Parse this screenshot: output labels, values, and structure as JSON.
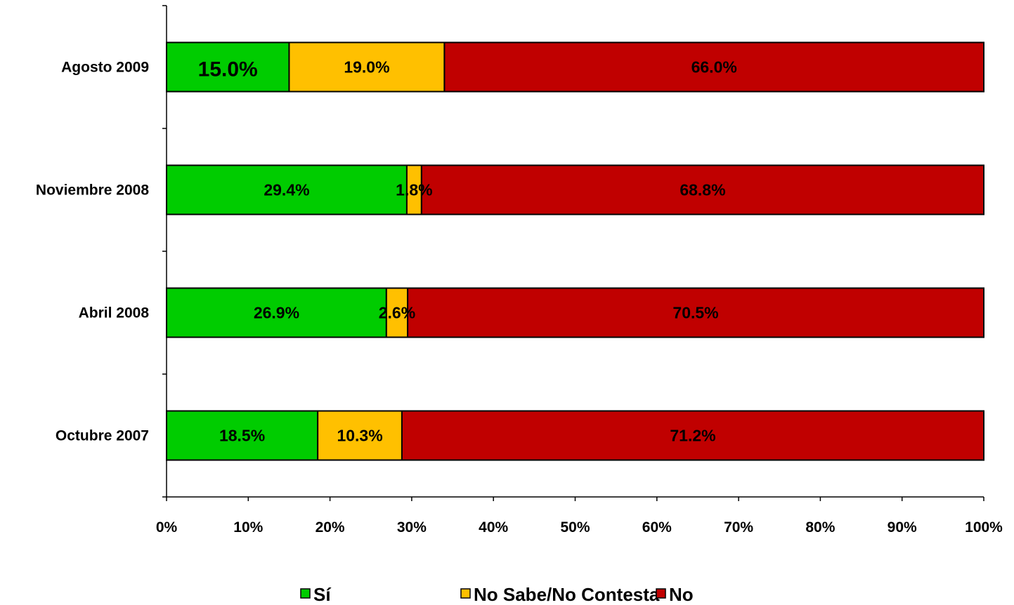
{
  "chart_data": {
    "type": "bar",
    "orientation": "horizontal",
    "stacked": "percent",
    "categories": [
      "Agosto 2009",
      "Noviembre 2008",
      "Abril 2008",
      "Octubre 2007"
    ],
    "series": [
      {
        "name": "Sí",
        "color": "#00CC00",
        "values": [
          15.0,
          29.4,
          26.9,
          18.5
        ],
        "labels": [
          "15.0%",
          "29.4%",
          "26.9%",
          "18.5%"
        ]
      },
      {
        "name": "No Sabe/No Contesta",
        "color": "#FFC000",
        "values": [
          19.0,
          1.8,
          2.6,
          10.3
        ],
        "labels": [
          "19.0%",
          "1.8%",
          "2.6%",
          "10.3%"
        ]
      },
      {
        "name": "No",
        "color": "#C00000",
        "values": [
          66.0,
          68.8,
          70.5,
          71.2
        ],
        "labels": [
          "66.0%",
          "68.8%",
          "70.5%",
          "71.2%"
        ]
      }
    ],
    "xlim": [
      0,
      100
    ],
    "x_ticks": [
      0,
      10,
      20,
      30,
      40,
      50,
      60,
      70,
      80,
      90,
      100
    ],
    "x_tick_labels": [
      "0%",
      "10%",
      "20%",
      "30%",
      "40%",
      "50%",
      "60%",
      "70%",
      "80%",
      "90%",
      "100%"
    ],
    "grid": false,
    "legend_position": "bottom",
    "title": "",
    "xlabel": "",
    "ylabel": ""
  }
}
